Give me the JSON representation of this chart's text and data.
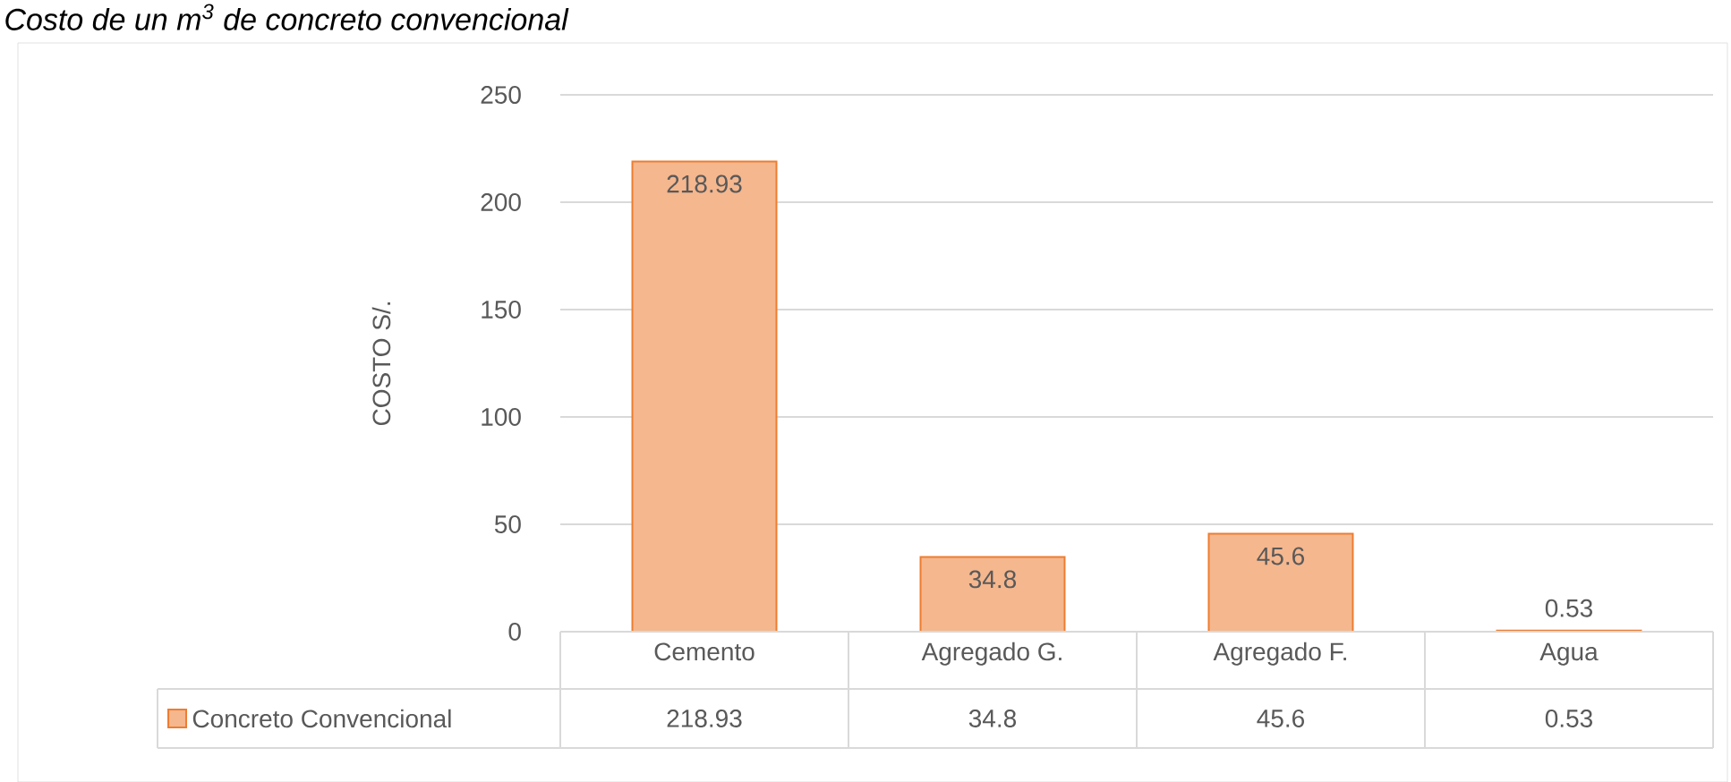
{
  "chart_data": {
    "type": "bar",
    "title": "Costo de un m$^{3}$ de concreto convencional",
    "ylabel": "COSTO S/.",
    "categories": [
      "Cemento",
      "Agregado G.",
      "Agregado F.",
      "Agua"
    ],
    "series": [
      {
        "name": "Concreto Convencional",
        "color": "#ed7d31",
        "values": [
          218.93,
          34.8,
          45.6,
          0.53
        ],
        "value_labels": [
          "218.93",
          "34.8",
          "45.6",
          "0.53"
        ]
      }
    ],
    "ylim": [
      0,
      250
    ],
    "yticks": [
      0,
      50,
      100,
      150,
      200,
      250
    ],
    "grid": "y",
    "legend": "bottom",
    "data_labels": true
  }
}
